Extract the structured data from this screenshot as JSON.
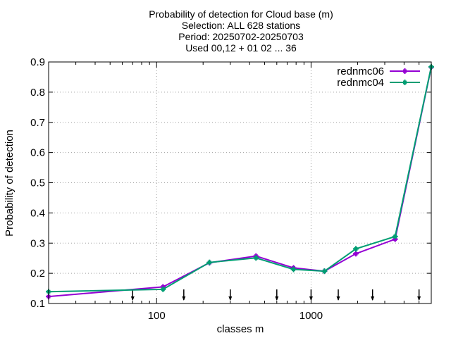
{
  "chart_data": {
    "type": "line",
    "title_lines": [
      "Probability of detection  for Cloud base (m)",
      "Selection: ALL    628 stations",
      "Period: 20250702-20250703",
      "Used 00,12 + 01 02 ... 36"
    ],
    "xlabel": "classes m",
    "ylabel": "Probability of detection",
    "x_scale": "log",
    "xlim": [
      20,
      6000
    ],
    "ylim": [
      0.1,
      0.9
    ],
    "y_ticks": [
      "0.1",
      "0.2",
      "0.3",
      "0.4",
      "0.5",
      "0.6",
      "0.7",
      "0.8",
      "0.9"
    ],
    "x_ticks": [
      "100",
      "1000"
    ],
    "grid": true,
    "legend_position": "top-right",
    "arrow_markers_x": [
      70,
      150,
      300,
      600,
      1000,
      1500,
      2500,
      5000
    ],
    "series": [
      {
        "name": "rednmc06",
        "color": "#9400d3",
        "x": [
          20,
          110,
          220,
          440,
          770,
          1220,
          1950,
          3500,
          6000
        ],
        "y": [
          0.123,
          0.155,
          0.235,
          0.257,
          0.218,
          0.207,
          0.265,
          0.313,
          0.883
        ]
      },
      {
        "name": "rednmc04",
        "color": "#009e73",
        "x": [
          20,
          110,
          220,
          440,
          770,
          1220,
          1950,
          3500,
          6000
        ],
        "y": [
          0.139,
          0.147,
          0.236,
          0.251,
          0.213,
          0.207,
          0.281,
          0.322,
          0.884
        ]
      }
    ]
  }
}
